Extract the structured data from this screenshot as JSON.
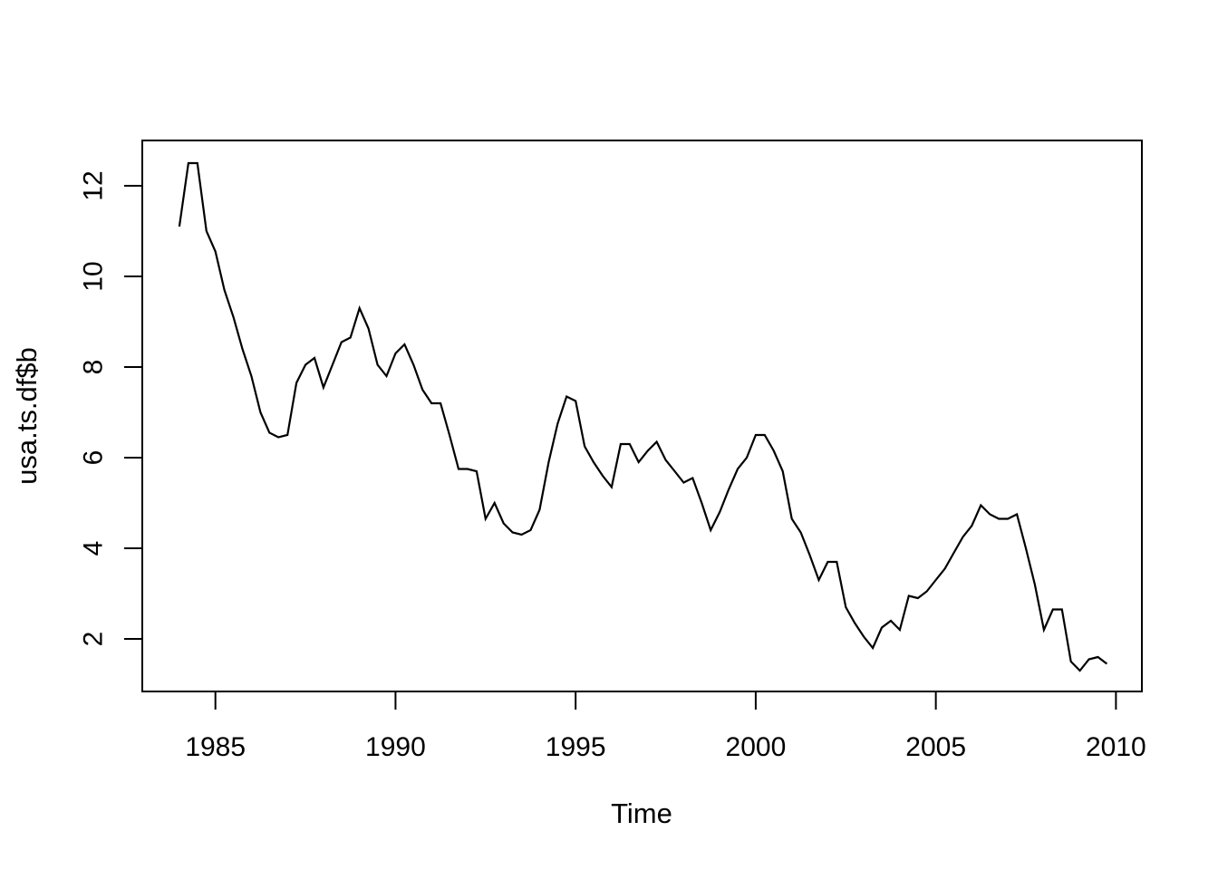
{
  "chart_data": {
    "type": "line",
    "title": "",
    "xlabel": "Time",
    "ylabel": "usa.ts.df$b",
    "grid": false,
    "legend": null,
    "line_color": "#000000",
    "axis_color": "#000000",
    "background_color": "#ffffff",
    "xlim": [
      1982.97,
      2010.72
    ],
    "ylim": [
      0.84,
      13.0
    ],
    "x_ticks": [
      1985,
      1990,
      1995,
      2000,
      2005,
      2010
    ],
    "y_ticks": [
      2,
      4,
      6,
      8,
      10,
      12
    ],
    "frequency": "quarterly",
    "x_start": 1984.0,
    "x_step": 0.25,
    "x": [
      1984.0,
      1984.25,
      1984.5,
      1984.75,
      1985.0,
      1985.25,
      1985.5,
      1985.75,
      1986.0,
      1986.25,
      1986.5,
      1986.75,
      1987.0,
      1987.25,
      1987.5,
      1987.75,
      1988.0,
      1988.25,
      1988.5,
      1988.75,
      1989.0,
      1989.25,
      1989.5,
      1989.75,
      1990.0,
      1990.25,
      1990.5,
      1990.75,
      1991.0,
      1991.25,
      1991.5,
      1991.75,
      1992.0,
      1992.25,
      1992.5,
      1992.75,
      1993.0,
      1993.25,
      1993.5,
      1993.75,
      1994.0,
      1994.25,
      1994.5,
      1994.75,
      1995.0,
      1995.25,
      1995.5,
      1995.75,
      1996.0,
      1996.25,
      1996.5,
      1996.75,
      1997.0,
      1997.25,
      1997.5,
      1997.75,
      1998.0,
      1998.25,
      1998.5,
      1998.75,
      1999.0,
      1999.25,
      1999.5,
      1999.75,
      2000.0,
      2000.25,
      2000.5,
      2000.75,
      2001.0,
      2001.25,
      2001.5,
      2001.75,
      2002.0,
      2002.25,
      2002.5,
      2002.75,
      2003.0,
      2003.25,
      2003.5,
      2003.75,
      2004.0,
      2004.25,
      2004.5,
      2004.75,
      2005.0,
      2005.25,
      2005.5,
      2005.75,
      2006.0,
      2006.25,
      2006.5,
      2006.75,
      2007.0,
      2007.25,
      2007.5,
      2007.75,
      2008.0,
      2008.25,
      2008.5,
      2008.75,
      2009.0,
      2009.25,
      2009.5,
      2009.75
    ],
    "values": [
      11.1,
      12.5,
      12.5,
      11.0,
      10.55,
      9.7,
      9.1,
      8.4,
      7.8,
      7.0,
      6.55,
      6.45,
      6.5,
      7.65,
      8.05,
      8.2,
      7.55,
      8.05,
      8.55,
      8.65,
      9.3,
      8.85,
      8.05,
      7.8,
      8.3,
      8.5,
      8.05,
      7.5,
      7.2,
      7.2,
      6.5,
      5.75,
      5.75,
      5.7,
      4.65,
      5.0,
      4.55,
      4.35,
      4.3,
      4.4,
      4.85,
      5.9,
      6.75,
      7.35,
      7.25,
      6.25,
      5.9,
      5.6,
      5.35,
      6.3,
      6.3,
      5.9,
      6.15,
      6.35,
      5.95,
      5.7,
      5.45,
      5.55,
      5.0,
      4.4,
      4.8,
      5.3,
      5.75,
      6.0,
      6.5,
      6.5,
      6.15,
      5.7,
      4.65,
      4.35,
      3.85,
      3.3,
      3.7,
      3.7,
      2.7,
      2.35,
      2.05,
      1.8,
      2.25,
      2.4,
      2.2,
      2.95,
      2.9,
      3.05,
      3.3,
      3.55,
      3.9,
      4.25,
      4.5,
      4.95,
      4.75,
      4.65,
      4.65,
      4.75,
      4.0,
      3.2,
      2.2,
      2.65,
      2.65,
      1.5,
      1.3,
      1.55,
      1.6,
      1.45
    ]
  }
}
